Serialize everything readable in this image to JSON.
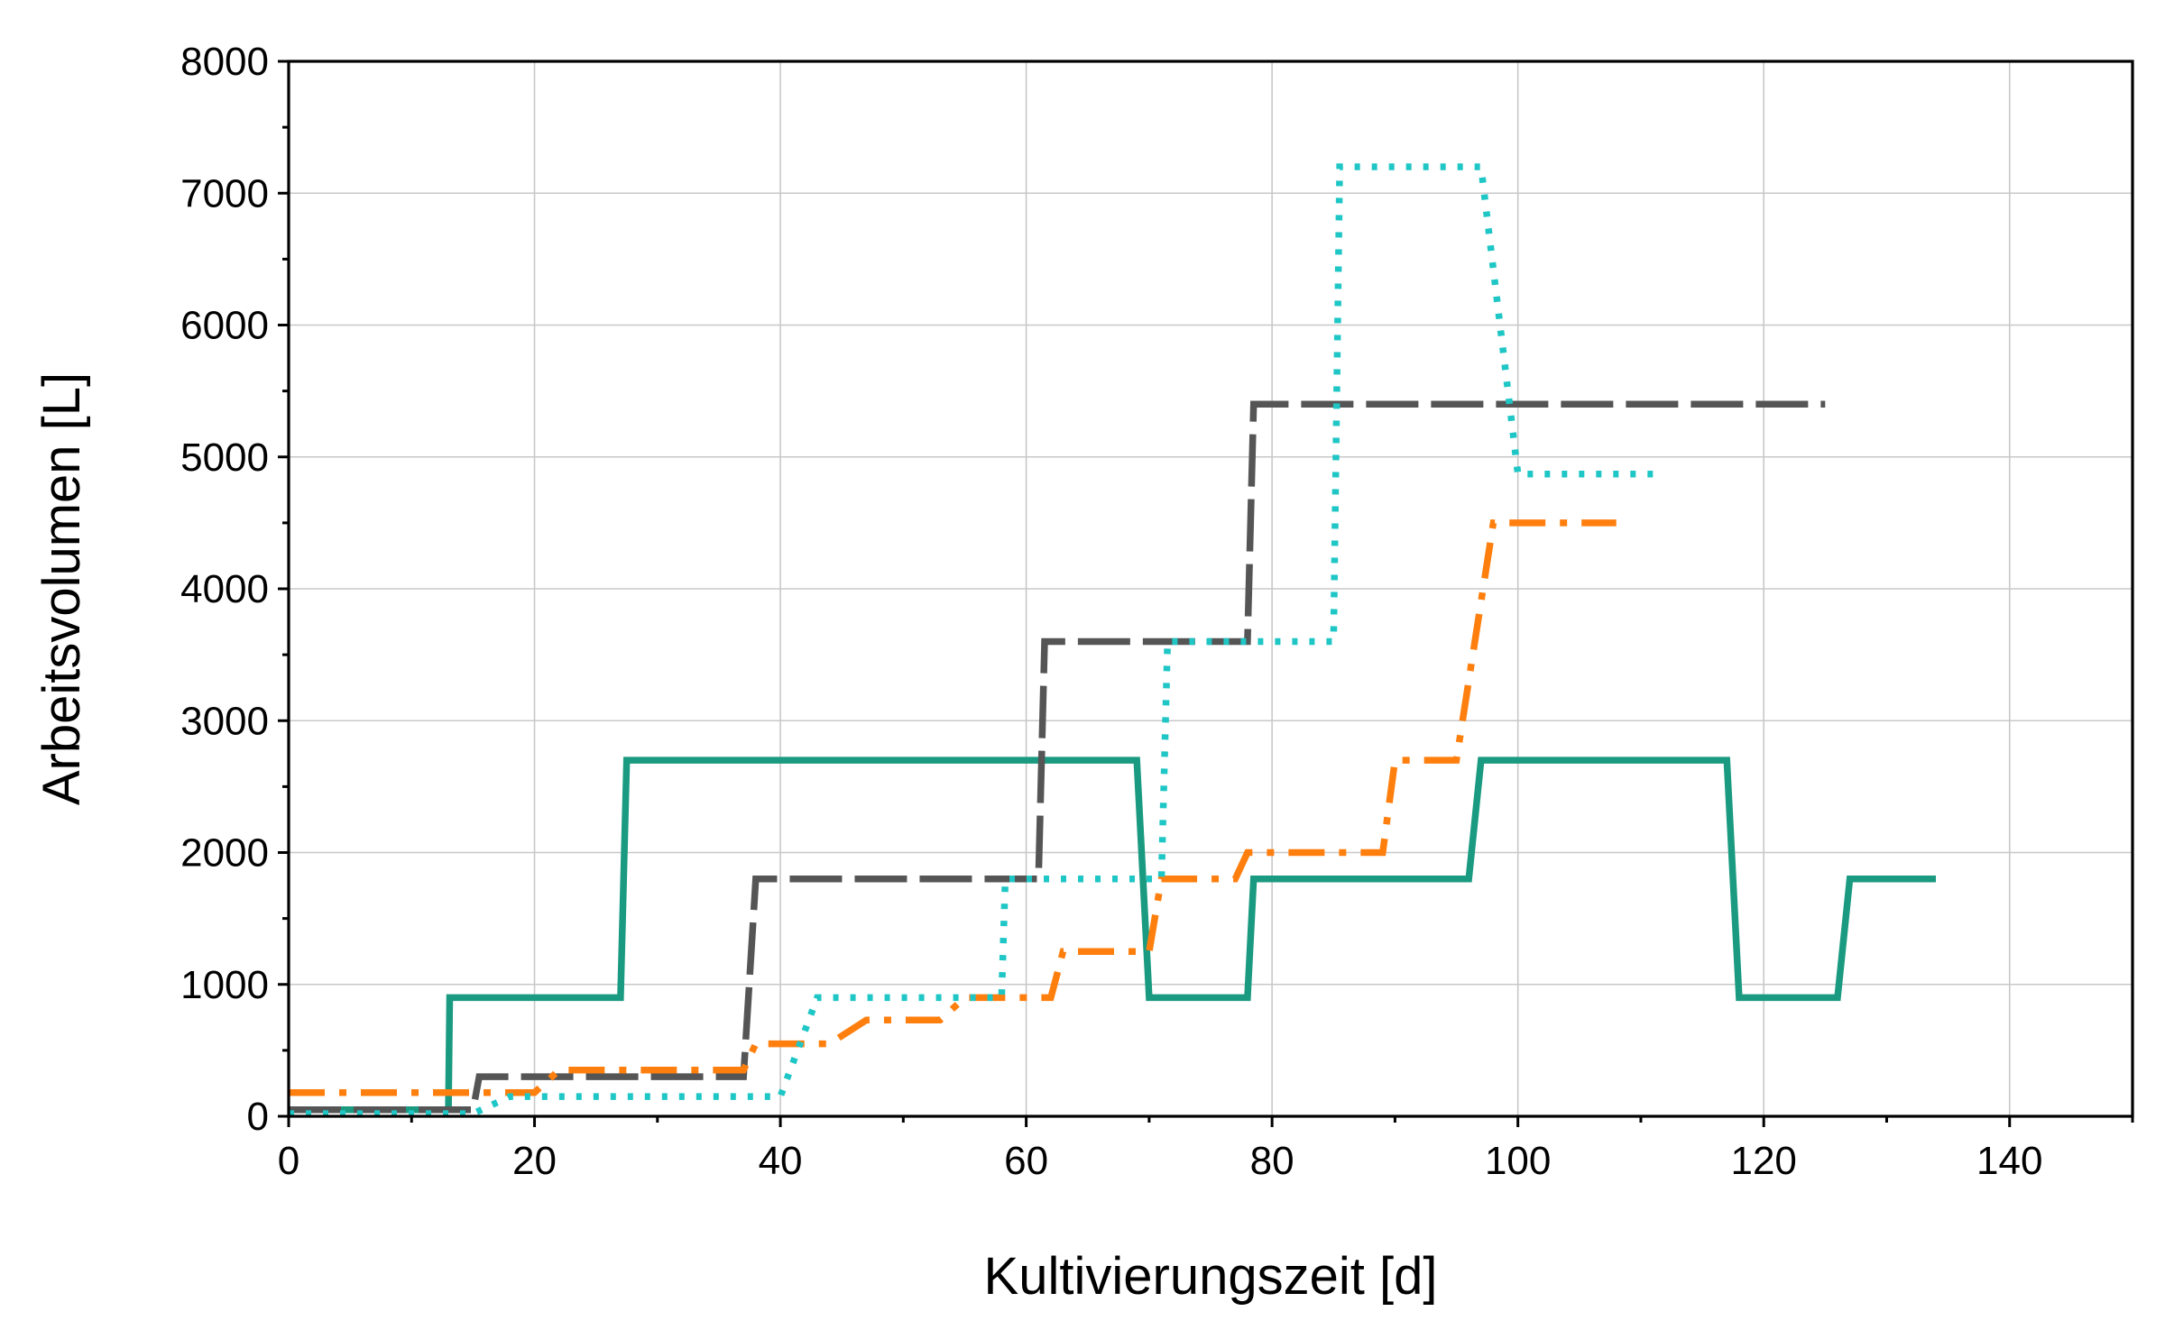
{
  "chart_data": {
    "type": "line",
    "xlabel": "Kultivierungszeit [d]",
    "ylabel": "Arbeitsvolumen [L]",
    "xlim": [
      0,
      150
    ],
    "ylim": [
      0,
      8000
    ],
    "xticks": [
      0,
      20,
      40,
      60,
      80,
      100,
      120,
      140
    ],
    "xtick_labels": [
      "0",
      "20",
      "40",
      "60",
      "80",
      "100",
      "120",
      "140"
    ],
    "yticks": [
      0,
      1000,
      2000,
      3000,
      4000,
      5000,
      6000,
      7000,
      8000
    ],
    "ytick_labels": [
      "0",
      "1000",
      "2000",
      "3000",
      "4000",
      "5000",
      "6000",
      "7000",
      "8000"
    ],
    "grid": true,
    "series": [
      {
        "color": "#1a9a80",
        "style": "solid",
        "points": [
          [
            0,
            50
          ],
          [
            13,
            50
          ],
          [
            13.1,
            900
          ],
          [
            27,
            900
          ],
          [
            27.5,
            2700
          ],
          [
            69,
            2700
          ],
          [
            70,
            900
          ],
          [
            78,
            900
          ],
          [
            78.5,
            1800
          ],
          [
            96,
            1800
          ],
          [
            97,
            2700
          ],
          [
            117,
            2700
          ],
          [
            118,
            900
          ],
          [
            126,
            900
          ],
          [
            127,
            1800
          ],
          [
            134,
            1800
          ]
        ]
      },
      {
        "color": "#555555",
        "style": "dashed",
        "points": [
          [
            0,
            50
          ],
          [
            15,
            50
          ],
          [
            15.5,
            300
          ],
          [
            37,
            300
          ],
          [
            38,
            1800
          ],
          [
            61,
            1800
          ],
          [
            61.5,
            3600
          ],
          [
            78,
            3600
          ],
          [
            78.5,
            5400
          ],
          [
            125,
            5400
          ]
        ]
      },
      {
        "color": "#ff7f0e",
        "style": "dashdot",
        "points": [
          [
            0,
            180
          ],
          [
            20,
            180
          ],
          [
            22,
            350
          ],
          [
            37,
            350
          ],
          [
            38,
            550
          ],
          [
            44,
            550
          ],
          [
            47,
            730
          ],
          [
            53,
            730
          ],
          [
            55,
            900
          ],
          [
            62,
            900
          ],
          [
            63,
            1250
          ],
          [
            70,
            1250
          ],
          [
            71,
            1800
          ],
          [
            77,
            1800
          ],
          [
            78,
            2000
          ],
          [
            89,
            2000
          ],
          [
            90,
            2700
          ],
          [
            95,
            2700
          ],
          [
            98,
            4500
          ],
          [
            108,
            4500
          ]
        ]
      },
      {
        "color": "#1fc6c6",
        "style": "dotted",
        "points": [
          [
            0,
            20
          ],
          [
            15,
            20
          ],
          [
            18,
            150
          ],
          [
            40,
            150
          ],
          [
            43,
            900
          ],
          [
            58,
            900
          ],
          [
            58.3,
            1800
          ],
          [
            71,
            1800
          ],
          [
            71.5,
            3600
          ],
          [
            85,
            3600
          ],
          [
            85.5,
            7200
          ],
          [
            97,
            7200
          ],
          [
            100,
            4870
          ],
          [
            111,
            4870
          ]
        ]
      }
    ]
  }
}
